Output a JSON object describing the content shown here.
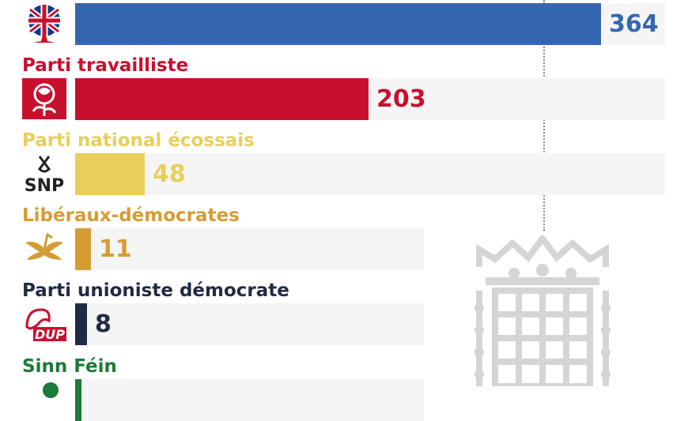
{
  "chart_data": {
    "type": "bar",
    "orientation": "horizontal",
    "categories": [
      "",
      "Parti travailliste",
      "Parti national écossais",
      "Libéraux-démocrates",
      "Parti unioniste démocrate",
      "Sinn Féin"
    ],
    "values": [
      364,
      203,
      48,
      11,
      8,
      null
    ],
    "value_labels": [
      "364",
      "203",
      "48",
      "11",
      "8",
      ""
    ],
    "colors": [
      "#3567b1",
      "#c8102e",
      "#e8cf5a",
      "#d69c34",
      "#1f2a44",
      "#1c7a3a"
    ],
    "label_colors": [
      "#3567b1",
      "#c8102e",
      "#e8cf5a",
      "#d69c34",
      "#1f2a44",
      "#1c7a3a"
    ],
    "icons": [
      "conservative-tree-union-flag-icon",
      "labour-rose-icon",
      "snp-logo-icon",
      "libdem-bird-icon",
      "dup-lion-icon",
      "sinn-fein-icon"
    ],
    "logo_text": [
      "",
      "",
      "SNP",
      "",
      "DUP",
      ""
    ],
    "majority_line": 326,
    "decorations": [
      "portcullis-icon"
    ],
    "xlim": [
      0,
      650
    ]
  }
}
